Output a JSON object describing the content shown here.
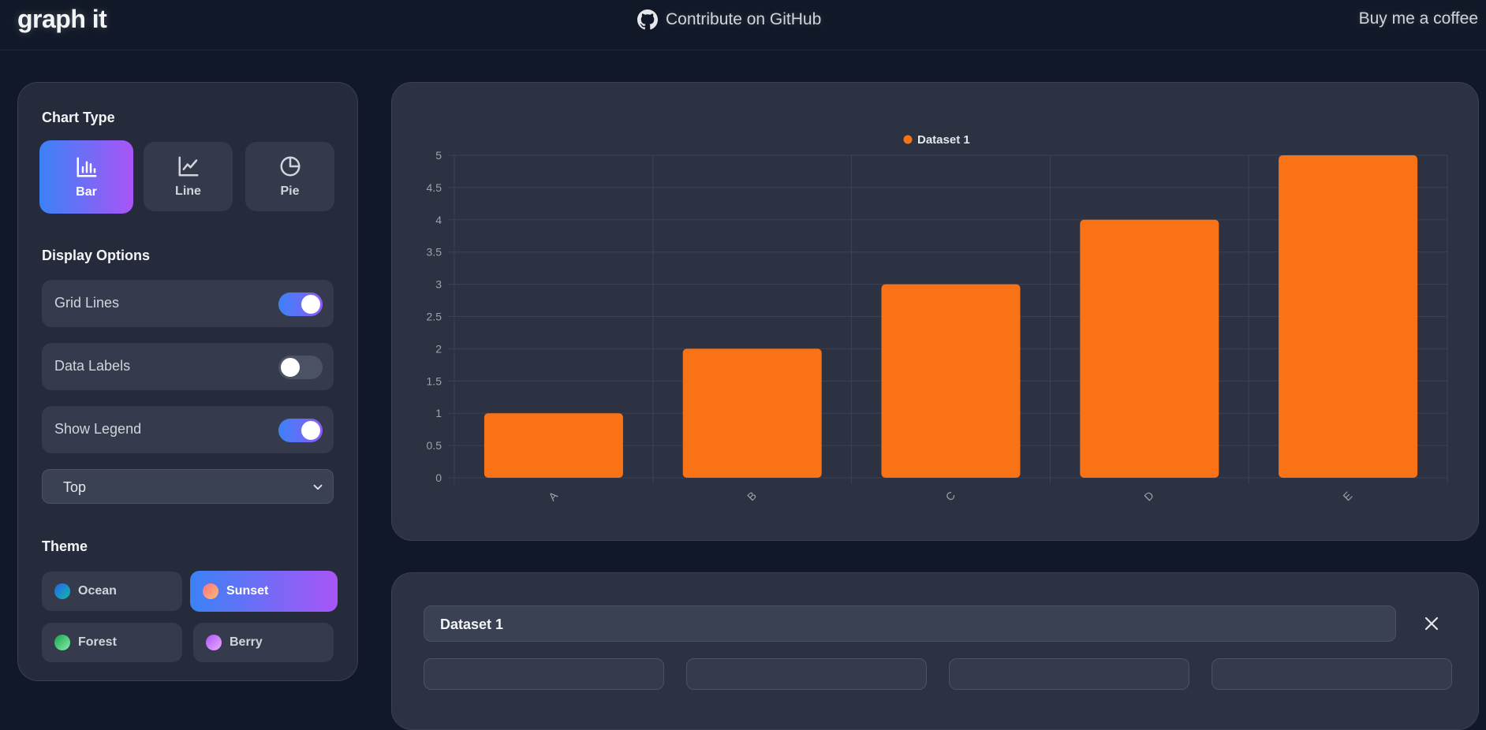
{
  "header": {
    "logo": "graph it",
    "github_link": "Contribute on GitHub",
    "coffee_link": "Buy me a coffee"
  },
  "sidebar": {
    "chart_type_title": "Chart Type",
    "chart_types": [
      {
        "label": "Bar",
        "icon": "bar-chart-icon",
        "active": true
      },
      {
        "label": "Line",
        "icon": "line-chart-icon",
        "active": false
      },
      {
        "label": "Pie",
        "icon": "pie-chart-icon",
        "active": false
      }
    ],
    "display_options_title": "Display Options",
    "toggles": [
      {
        "label": "Grid Lines",
        "on": true
      },
      {
        "label": "Data Labels",
        "on": false
      },
      {
        "label": "Show Legend",
        "on": true
      }
    ],
    "legend_position": "Top",
    "theme_title": "Theme",
    "themes": [
      {
        "label": "Ocean",
        "active": false,
        "color": "#1f8fa3"
      },
      {
        "label": "Sunset",
        "active": true,
        "color": "#fb8a6b"
      },
      {
        "label": "Forest",
        "active": false,
        "color": "#4caf50"
      },
      {
        "label": "Berry",
        "active": false,
        "color": "#c06fd3"
      }
    ]
  },
  "chart_data": {
    "type": "bar",
    "categories": [
      "A",
      "B",
      "C",
      "D",
      "E"
    ],
    "series": [
      {
        "name": "Dataset 1",
        "values": [
          1,
          2,
          3,
          4,
          5
        ],
        "color": "#f97316"
      }
    ],
    "title": "",
    "xlabel": "",
    "ylabel": "",
    "ylim": [
      0,
      5
    ],
    "yticks": [
      "0",
      "0.5",
      "1",
      "1.5",
      "2",
      "2.5",
      "3",
      "3.5",
      "4",
      "4.5",
      "5"
    ],
    "grid": true,
    "legend": "top"
  },
  "dataset_editor": {
    "name_value": "Dataset 1"
  },
  "colors": {
    "background": "#111827",
    "card": "#2c3242",
    "accent_start": "#3b82f6",
    "accent_end": "#a855f7",
    "bar": "#f97316"
  }
}
